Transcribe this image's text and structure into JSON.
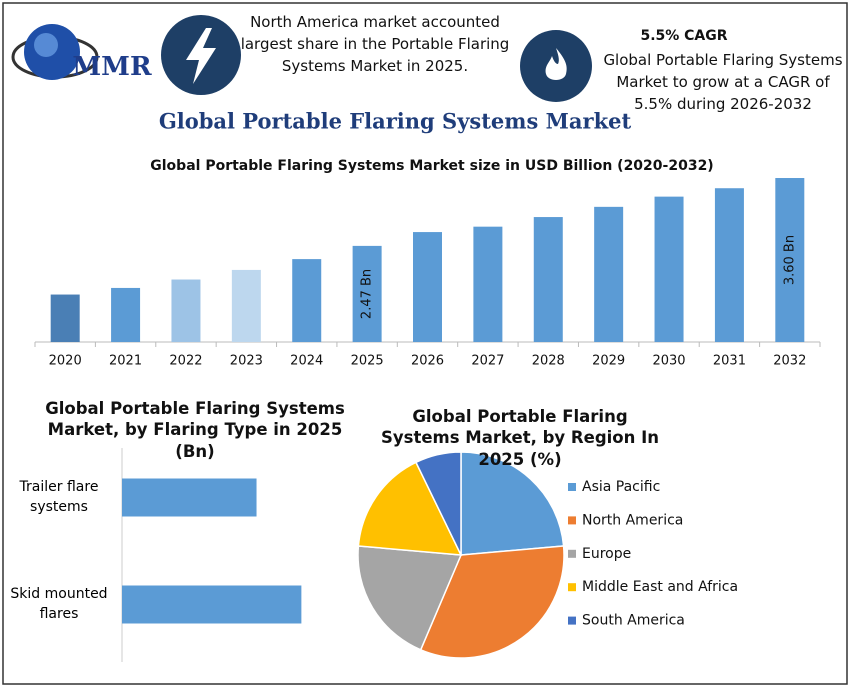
{
  "logo": "MMR",
  "callouts": [
    {
      "text": "North America market accounted largest share in the Portable Flaring Systems Market in 2025."
    },
    {
      "title": "5.5% CAGR",
      "text": "Global Portable Flaring Systems Market to grow at a CAGR of 5.5% during 2026-2032"
    }
  ],
  "title": "Global Portable Flaring Systems Market",
  "chart_data": [
    {
      "type": "bar",
      "title": "Global Portable Flaring Systems Market size in USD Billion (2020-2032)",
      "categories": [
        "2020",
        "2021",
        "2022",
        "2023",
        "2024",
        "2025",
        "2026",
        "2027",
        "2028",
        "2029",
        "2030",
        "2031",
        "2032"
      ],
      "values": [
        1.66,
        1.77,
        1.91,
        2.07,
        2.25,
        2.47,
        2.7,
        2.79,
        2.95,
        3.12,
        3.29,
        3.43,
        3.6
      ],
      "value_labels": [
        null,
        null,
        null,
        null,
        null,
        "2.47 Bn",
        null,
        null,
        null,
        null,
        null,
        null,
        "3.60 Bn"
      ],
      "colors": [
        "#4a7fb5",
        "#5b9bd5",
        "#9dc3e6",
        "#bdd7ee",
        "#5b9bd5",
        "#5b9bd5",
        "#5b9bd5",
        "#5b9bd5",
        "#5b9bd5",
        "#5b9bd5",
        "#5b9bd5",
        "#5b9bd5",
        "#5b9bd5"
      ],
      "ylim": [
        0.87,
        3.8
      ]
    },
    {
      "type": "barh",
      "title": "Global Portable Flaring Systems Market, by Flaring Type in 2025 (Bn)",
      "categories": [
        "Trailer flare systems",
        "Skid mounted flares"
      ],
      "values": [
        1.05,
        1.4
      ],
      "color": "#5b9bd5",
      "xlim": [
        0,
        1.6
      ]
    },
    {
      "type": "pie",
      "title": "Global Portable Flaring Systems Market, by Region In 2025 (%)",
      "categories": [
        "Asia Pacific",
        "North America",
        "Europe",
        "Middle East and Africa",
        "South America"
      ],
      "values": [
        23.6,
        32.8,
        20,
        16.4,
        7.2
      ],
      "colors": [
        "#5b9bd5",
        "#ed7d31",
        "#a5a5a5",
        "#ffc000",
        "#4472c4"
      ],
      "legend": "right"
    }
  ]
}
